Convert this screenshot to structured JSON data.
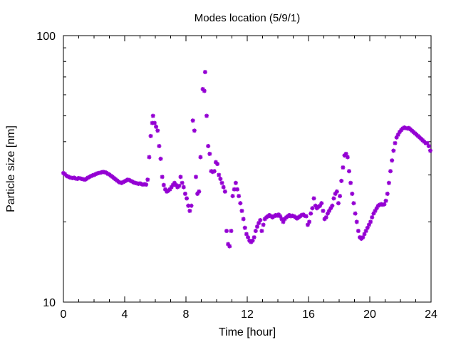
{
  "chart_data": {
    "type": "scatter",
    "title": "Modes location (5/9/1)",
    "xlabel": "Time [hour]",
    "ylabel": "Particle size [nm]",
    "xlim": [
      0,
      24
    ],
    "ylim": [
      10,
      100
    ],
    "yscale": "log",
    "grid": false,
    "marker_color": "#9400d3",
    "x_ticks": [
      "0",
      "4",
      "8",
      "12",
      "16",
      "20",
      "24"
    ],
    "y_ticks": [
      "10",
      "100"
    ],
    "series": [
      {
        "points": [
          [
            0.0,
            30.5
          ],
          [
            0.1,
            30.2
          ],
          [
            0.2,
            29.8
          ],
          [
            0.3,
            29.6
          ],
          [
            0.4,
            29.4
          ],
          [
            0.5,
            29.3
          ],
          [
            0.6,
            29.2
          ],
          [
            0.7,
            29.3
          ],
          [
            0.8,
            29.1
          ],
          [
            0.9,
            29.0
          ],
          [
            1.0,
            29.2
          ],
          [
            1.1,
            29.1
          ],
          [
            1.2,
            29.0
          ],
          [
            1.3,
            28.9
          ],
          [
            1.4,
            28.8
          ],
          [
            1.5,
            29.0
          ],
          [
            1.6,
            29.3
          ],
          [
            1.7,
            29.5
          ],
          [
            1.8,
            29.7
          ],
          [
            1.9,
            29.9
          ],
          [
            2.0,
            30.0
          ],
          [
            2.1,
            30.2
          ],
          [
            2.2,
            30.4
          ],
          [
            2.3,
            30.5
          ],
          [
            2.4,
            30.6
          ],
          [
            2.5,
            30.7
          ],
          [
            2.6,
            30.8
          ],
          [
            2.7,
            30.7
          ],
          [
            2.8,
            30.6
          ],
          [
            2.9,
            30.3
          ],
          [
            3.0,
            30.1
          ],
          [
            3.1,
            29.8
          ],
          [
            3.2,
            29.5
          ],
          [
            3.3,
            29.2
          ],
          [
            3.4,
            28.9
          ],
          [
            3.5,
            28.6
          ],
          [
            3.6,
            28.3
          ],
          [
            3.7,
            28.1
          ],
          [
            3.8,
            28.0
          ],
          [
            3.9,
            28.2
          ],
          [
            4.0,
            28.4
          ],
          [
            4.1,
            28.6
          ],
          [
            4.2,
            28.8
          ],
          [
            4.3,
            28.7
          ],
          [
            4.4,
            28.5
          ],
          [
            4.5,
            28.3
          ],
          [
            4.6,
            28.1
          ],
          [
            4.7,
            28.0
          ],
          [
            4.8,
            27.9
          ],
          [
            4.9,
            27.8
          ],
          [
            5.0,
            27.9
          ],
          [
            5.1,
            27.7
          ],
          [
            5.2,
            27.6
          ],
          [
            5.3,
            27.7
          ],
          [
            5.4,
            27.6
          ],
          [
            5.5,
            28.8
          ],
          [
            5.6,
            35.0
          ],
          [
            5.7,
            42.0
          ],
          [
            5.8,
            47.0
          ],
          [
            5.85,
            50.0
          ],
          [
            5.95,
            47.0
          ],
          [
            6.05,
            45.5
          ],
          [
            6.15,
            44.0
          ],
          [
            6.25,
            38.5
          ],
          [
            6.35,
            34.5
          ],
          [
            6.45,
            29.5
          ],
          [
            6.55,
            27.5
          ],
          [
            6.65,
            26.5
          ],
          [
            6.75,
            26.0
          ],
          [
            6.85,
            26.2
          ],
          [
            6.95,
            26.5
          ],
          [
            7.05,
            27.0
          ],
          [
            7.15,
            27.5
          ],
          [
            7.25,
            28.0
          ],
          [
            7.35,
            27.5
          ],
          [
            7.45,
            27.0
          ],
          [
            7.55,
            27.3
          ],
          [
            7.65,
            29.5
          ],
          [
            7.75,
            28.0
          ],
          [
            7.85,
            27.0
          ],
          [
            7.95,
            25.5
          ],
          [
            8.05,
            24.5
          ],
          [
            8.15,
            23.0
          ],
          [
            8.25,
            22.0
          ],
          [
            8.35,
            23.0
          ],
          [
            8.45,
            48.0
          ],
          [
            8.55,
            44.0
          ],
          [
            8.65,
            29.5
          ],
          [
            8.75,
            25.5
          ],
          [
            8.85,
            26.0
          ],
          [
            8.95,
            35.0
          ],
          [
            9.1,
            63.0
          ],
          [
            9.2,
            62.0
          ],
          [
            9.25,
            73.0
          ],
          [
            9.35,
            50.0
          ],
          [
            9.45,
            38.5
          ],
          [
            9.55,
            36.0
          ],
          [
            9.65,
            31.0
          ],
          [
            9.75,
            30.8
          ],
          [
            9.85,
            31.0
          ],
          [
            9.95,
            33.5
          ],
          [
            10.05,
            33.0
          ],
          [
            10.15,
            30.0
          ],
          [
            10.25,
            29.0
          ],
          [
            10.35,
            28.0
          ],
          [
            10.45,
            27.0
          ],
          [
            10.55,
            26.0
          ],
          [
            10.65,
            18.5
          ],
          [
            10.75,
            16.5
          ],
          [
            10.85,
            16.2
          ],
          [
            10.95,
            18.5
          ],
          [
            11.05,
            25.0
          ],
          [
            11.15,
            26.5
          ],
          [
            11.25,
            28.0
          ],
          [
            11.35,
            26.5
          ],
          [
            11.45,
            25.0
          ],
          [
            11.55,
            23.5
          ],
          [
            11.65,
            22.0
          ],
          [
            11.75,
            20.5
          ],
          [
            11.85,
            19.0
          ],
          [
            11.95,
            18.0
          ],
          [
            12.05,
            17.5
          ],
          [
            12.15,
            17.0
          ],
          [
            12.25,
            16.8
          ],
          [
            12.35,
            17.0
          ],
          [
            12.45,
            17.5
          ],
          [
            12.55,
            18.5
          ],
          [
            12.65,
            19.2
          ],
          [
            12.75,
            19.8
          ],
          [
            12.85,
            20.3
          ],
          [
            12.95,
            18.5
          ],
          [
            13.05,
            19.5
          ],
          [
            13.15,
            20.5
          ],
          [
            13.25,
            20.8
          ],
          [
            13.35,
            21.0
          ],
          [
            13.45,
            21.2
          ],
          [
            13.55,
            21.0
          ],
          [
            13.65,
            20.8
          ],
          [
            13.75,
            21.0
          ],
          [
            13.85,
            21.2
          ],
          [
            13.95,
            21.1
          ],
          [
            14.05,
            21.3
          ],
          [
            14.15,
            21.0
          ],
          [
            14.25,
            20.5
          ],
          [
            14.35,
            20.0
          ],
          [
            14.45,
            20.5
          ],
          [
            14.55,
            20.8
          ],
          [
            14.65,
            21.0
          ],
          [
            14.75,
            21.2
          ],
          [
            14.85,
            21.0
          ],
          [
            14.95,
            21.1
          ],
          [
            15.05,
            21.0
          ],
          [
            15.15,
            20.8
          ],
          [
            15.25,
            20.6
          ],
          [
            15.35,
            20.8
          ],
          [
            15.45,
            21.0
          ],
          [
            15.55,
            21.2
          ],
          [
            15.65,
            21.3
          ],
          [
            15.75,
            21.1
          ],
          [
            15.85,
            21.0
          ],
          [
            15.95,
            19.5
          ],
          [
            16.05,
            20.0
          ],
          [
            16.15,
            21.5
          ],
          [
            16.25,
            22.5
          ],
          [
            16.35,
            24.5
          ],
          [
            16.45,
            23.0
          ],
          [
            16.55,
            22.5
          ],
          [
            16.65,
            22.8
          ],
          [
            16.75,
            23.0
          ],
          [
            16.85,
            23.5
          ],
          [
            16.95,
            22.0
          ],
          [
            17.05,
            20.5
          ],
          [
            17.15,
            20.8
          ],
          [
            17.25,
            21.5
          ],
          [
            17.35,
            22.0
          ],
          [
            17.45,
            22.5
          ],
          [
            17.55,
            23.0
          ],
          [
            17.65,
            24.5
          ],
          [
            17.75,
            25.5
          ],
          [
            17.85,
            26.0
          ],
          [
            17.95,
            23.5
          ],
          [
            18.05,
            25.0
          ],
          [
            18.15,
            28.5
          ],
          [
            18.25,
            32.0
          ],
          [
            18.35,
            35.5
          ],
          [
            18.45,
            36.0
          ],
          [
            18.55,
            35.0
          ],
          [
            18.65,
            31.0
          ],
          [
            18.75,
            28.0
          ],
          [
            18.85,
            25.5
          ],
          [
            18.95,
            23.5
          ],
          [
            19.05,
            21.5
          ],
          [
            19.15,
            20.0
          ],
          [
            19.25,
            18.5
          ],
          [
            19.35,
            17.5
          ],
          [
            19.45,
            17.3
          ],
          [
            19.55,
            17.5
          ],
          [
            19.65,
            18.0
          ],
          [
            19.75,
            18.5
          ],
          [
            19.85,
            19.0
          ],
          [
            19.95,
            19.5
          ],
          [
            20.05,
            20.0
          ],
          [
            20.15,
            20.8
          ],
          [
            20.25,
            21.5
          ],
          [
            20.35,
            22.0
          ],
          [
            20.45,
            22.5
          ],
          [
            20.55,
            23.0
          ],
          [
            20.65,
            23.2
          ],
          [
            20.75,
            23.3
          ],
          [
            20.85,
            23.2
          ],
          [
            20.95,
            23.3
          ],
          [
            21.05,
            24.0
          ],
          [
            21.15,
            25.5
          ],
          [
            21.25,
            28.0
          ],
          [
            21.35,
            31.0
          ],
          [
            21.45,
            34.0
          ],
          [
            21.55,
            37.0
          ],
          [
            21.65,
            39.5
          ],
          [
            21.75,
            41.5
          ],
          [
            21.85,
            42.5
          ],
          [
            21.95,
            43.5
          ],
          [
            22.05,
            44.2
          ],
          [
            22.15,
            44.8
          ],
          [
            22.25,
            45.2
          ],
          [
            22.35,
            45.0
          ],
          [
            22.45,
            44.8
          ],
          [
            22.55,
            45.0
          ],
          [
            22.65,
            44.5
          ],
          [
            22.75,
            44.0
          ],
          [
            22.85,
            43.5
          ],
          [
            22.95,
            43.0
          ],
          [
            23.05,
            42.5
          ],
          [
            23.15,
            42.0
          ],
          [
            23.25,
            41.5
          ],
          [
            23.35,
            41.0
          ],
          [
            23.45,
            40.5
          ],
          [
            23.55,
            40.0
          ],
          [
            23.65,
            39.5
          ],
          [
            23.75,
            39.5
          ],
          [
            23.85,
            38.5
          ],
          [
            23.95,
            37.0
          ]
        ]
      }
    ]
  }
}
